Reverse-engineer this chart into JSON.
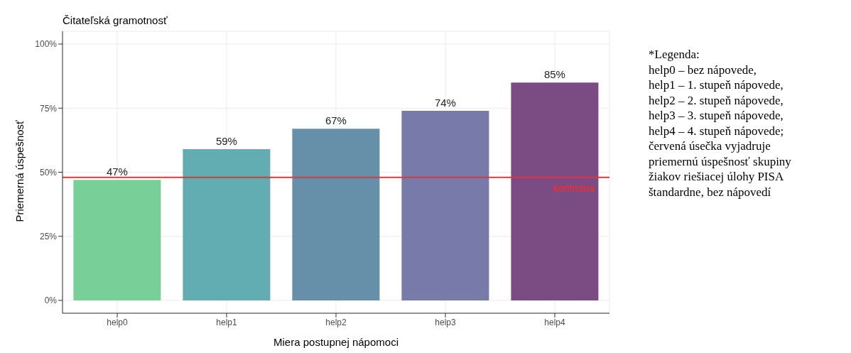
{
  "chart_data": {
    "type": "bar",
    "title": "Čitateľská gramotnosť",
    "xlabel": "Miera postupnej nápomoci",
    "ylabel": "Priemerná úspešnosť",
    "categories": [
      "help0",
      "help1",
      "help2",
      "help3",
      "help4"
    ],
    "values": [
      47,
      59,
      67,
      74,
      85
    ],
    "value_labels": [
      "47%",
      "59%",
      "67%",
      "74%",
      "85%"
    ],
    "colors": [
      "#78cf98",
      "#61adb1",
      "#6690aa",
      "#787aaa",
      "#7b4b84"
    ],
    "ylim": [
      -5,
      105
    ],
    "yticks": [
      {
        "value": 0,
        "label": "0%"
      },
      {
        "value": 25,
        "label": "25%"
      },
      {
        "value": 50,
        "label": "50%"
      },
      {
        "value": 75,
        "label": "75%"
      },
      {
        "value": 100,
        "label": "100%"
      }
    ],
    "grid": true,
    "ref_lines": [
      {
        "axis": "y",
        "value": 48,
        "label": "kontrolna",
        "color": "#ff2a2a"
      }
    ],
    "annotations": [
      "*Legenda:",
      "help0 – bez nápovede,",
      "help1 – 1. stupeň nápovede,",
      "help2 – 2. stupeň nápovede,",
      "help3 – 3. stupeň nápovede,",
      "help4 – 4. stupeň nápovede;",
      "červená úsečka vyjadruje",
      "priemernú úspešnosť skupiny",
      "žiakov riešiacej úlohy PISA",
      "štandardne, bez nápovedí"
    ]
  }
}
